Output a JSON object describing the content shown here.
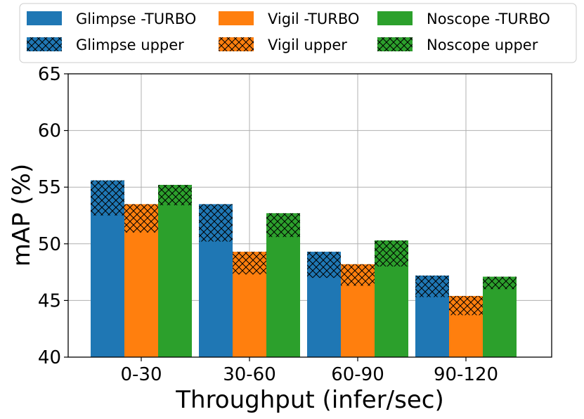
{
  "chart_data": {
    "type": "bar",
    "categories": [
      "0-30",
      "30-60",
      "60-90",
      "90-120"
    ],
    "series": [
      {
        "name": "Glimpse -TURBO",
        "values": [
          52.5,
          50.2,
          47.0,
          45.3
        ],
        "color": "#1f77b4",
        "hatch": false
      },
      {
        "name": "Vigil -TURBO",
        "values": [
          51.0,
          47.3,
          46.3,
          43.7
        ],
        "color": "#ff7f0e",
        "hatch": false
      },
      {
        "name": "Noscope -TURBO",
        "values": [
          53.4,
          50.6,
          48.0,
          46.0
        ],
        "color": "#2ca02c",
        "hatch": false
      },
      {
        "name": "Glimpse upper",
        "values": [
          55.6,
          53.5,
          49.3,
          47.2
        ],
        "color": "#1f77b4",
        "hatch": true
      },
      {
        "name": "Vigil upper",
        "values": [
          53.5,
          49.3,
          48.2,
          45.4
        ],
        "color": "#ff7f0e",
        "hatch": true
      },
      {
        "name": "Noscope upper",
        "values": [
          55.2,
          52.7,
          50.3,
          47.1
        ],
        "color": "#2ca02c",
        "hatch": true
      }
    ],
    "xlabel": "Throughput (infer/sec)",
    "ylabel": "mAP (%)",
    "ylim": [
      40,
      65
    ],
    "yticks": [
      "40",
      "45",
      "50",
      "55",
      "60",
      "65"
    ],
    "grid": true,
    "legend_position": "top"
  }
}
